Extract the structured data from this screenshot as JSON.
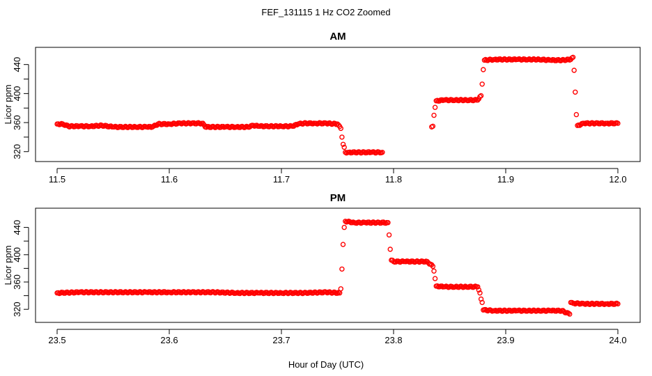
{
  "figure": {
    "title": "FEF_131115  1 Hz CO2 Zoomed",
    "xlabel": "Hour of Day (UTC)"
  },
  "colors": {
    "points": "#ff0000",
    "axis": "#000000",
    "background": "#ffffff"
  },
  "chart_data": [
    {
      "type": "scatter",
      "title": "AM",
      "xlabel": "Hour of Day (UTC)",
      "ylabel": "Licor ppm",
      "xlim": [
        11.5,
        12.0
      ],
      "ylim": [
        314,
        456
      ],
      "x_ticks": [
        "11.5",
        "11.6",
        "11.7",
        "11.8",
        "11.9",
        "12.0"
      ],
      "y_ticks": [
        "320",
        "360",
        "400",
        "440"
      ],
      "grid": false,
      "legend": "none",
      "series": [
        {
          "x": [
            11.5,
            11.505,
            11.51,
            11.52,
            11.53,
            11.54,
            11.55,
            11.56,
            11.57,
            11.58,
            11.585,
            11.59,
            11.6,
            11.61,
            11.62,
            11.63,
            11.632,
            11.64,
            11.65,
            11.66,
            11.67,
            11.675,
            11.68,
            11.69,
            11.7,
            11.71,
            11.715,
            11.72,
            11.73,
            11.74,
            11.75,
            11.753,
            11.754,
            11.755,
            11.756,
            11.757,
            11.76,
            11.77,
            11.78,
            11.79,
            11.834,
            11.835,
            11.836,
            11.837,
            11.838,
            11.845,
            11.855,
            11.865,
            11.875,
            11.878,
            11.879,
            11.88,
            11.881,
            11.89,
            11.9,
            11.91,
            11.92,
            11.93,
            11.94,
            11.95,
            11.958,
            11.96,
            11.961,
            11.962,
            11.963,
            11.964,
            11.97,
            11.98,
            11.99,
            12.0
          ],
          "y": [
            358,
            358,
            355,
            355,
            355,
            356,
            354,
            354,
            354,
            354,
            354,
            358,
            358,
            359,
            359,
            359,
            354,
            354,
            354,
            354,
            354,
            356,
            355,
            355,
            355,
            355,
            358,
            359,
            359,
            359,
            358,
            352,
            340,
            330,
            326,
            319,
            319,
            319,
            319,
            319,
            354,
            355,
            370,
            381,
            390,
            391,
            391,
            391,
            391,
            397,
            413,
            433,
            446,
            447,
            447,
            447,
            447,
            447,
            446,
            446,
            447,
            450,
            432,
            402,
            371,
            356,
            359,
            359,
            359,
            359
          ]
        }
      ]
    },
    {
      "type": "scatter",
      "title": "PM",
      "xlabel": "Hour of Day (UTC)",
      "ylabel": "Licor ppm",
      "xlim": [
        23.5,
        24.0
      ],
      "ylim": [
        309,
        460
      ],
      "x_ticks": [
        "23.5",
        "23.6",
        "23.7",
        "23.8",
        "23.9",
        "24.0"
      ],
      "y_ticks": [
        "320",
        "360",
        "400",
        "440"
      ],
      "grid": false,
      "legend": "none",
      "series": [
        {
          "x": [
            23.5,
            23.52,
            23.54,
            23.56,
            23.58,
            23.6,
            23.62,
            23.64,
            23.66,
            23.68,
            23.7,
            23.72,
            23.74,
            23.752,
            23.753,
            23.754,
            23.755,
            23.756,
            23.757,
            23.765,
            23.775,
            23.785,
            23.795,
            23.796,
            23.797,
            23.798,
            23.8,
            23.81,
            23.82,
            23.83,
            23.835,
            23.836,
            23.837,
            23.838,
            23.845,
            23.855,
            23.865,
            23.875,
            23.877,
            23.878,
            23.879,
            23.88,
            23.89,
            23.9,
            23.91,
            23.92,
            23.93,
            23.94,
            23.95,
            23.957,
            23.958,
            23.96,
            23.97,
            23.98,
            23.99,
            24.0
          ],
          "y": [
            344,
            345,
            345,
            345,
            345,
            345,
            345,
            345,
            344,
            344,
            344,
            344,
            345,
            344,
            350,
            379,
            415,
            440,
            449,
            447,
            447,
            447,
            447,
            429,
            408,
            392,
            390,
            390,
            390,
            390,
            383,
            376,
            365,
            354,
            353,
            353,
            353,
            353,
            344,
            335,
            330,
            319,
            318,
            318,
            318,
            318,
            318,
            318,
            318,
            313,
            330,
            329,
            328,
            328,
            328,
            328
          ]
        }
      ]
    }
  ]
}
